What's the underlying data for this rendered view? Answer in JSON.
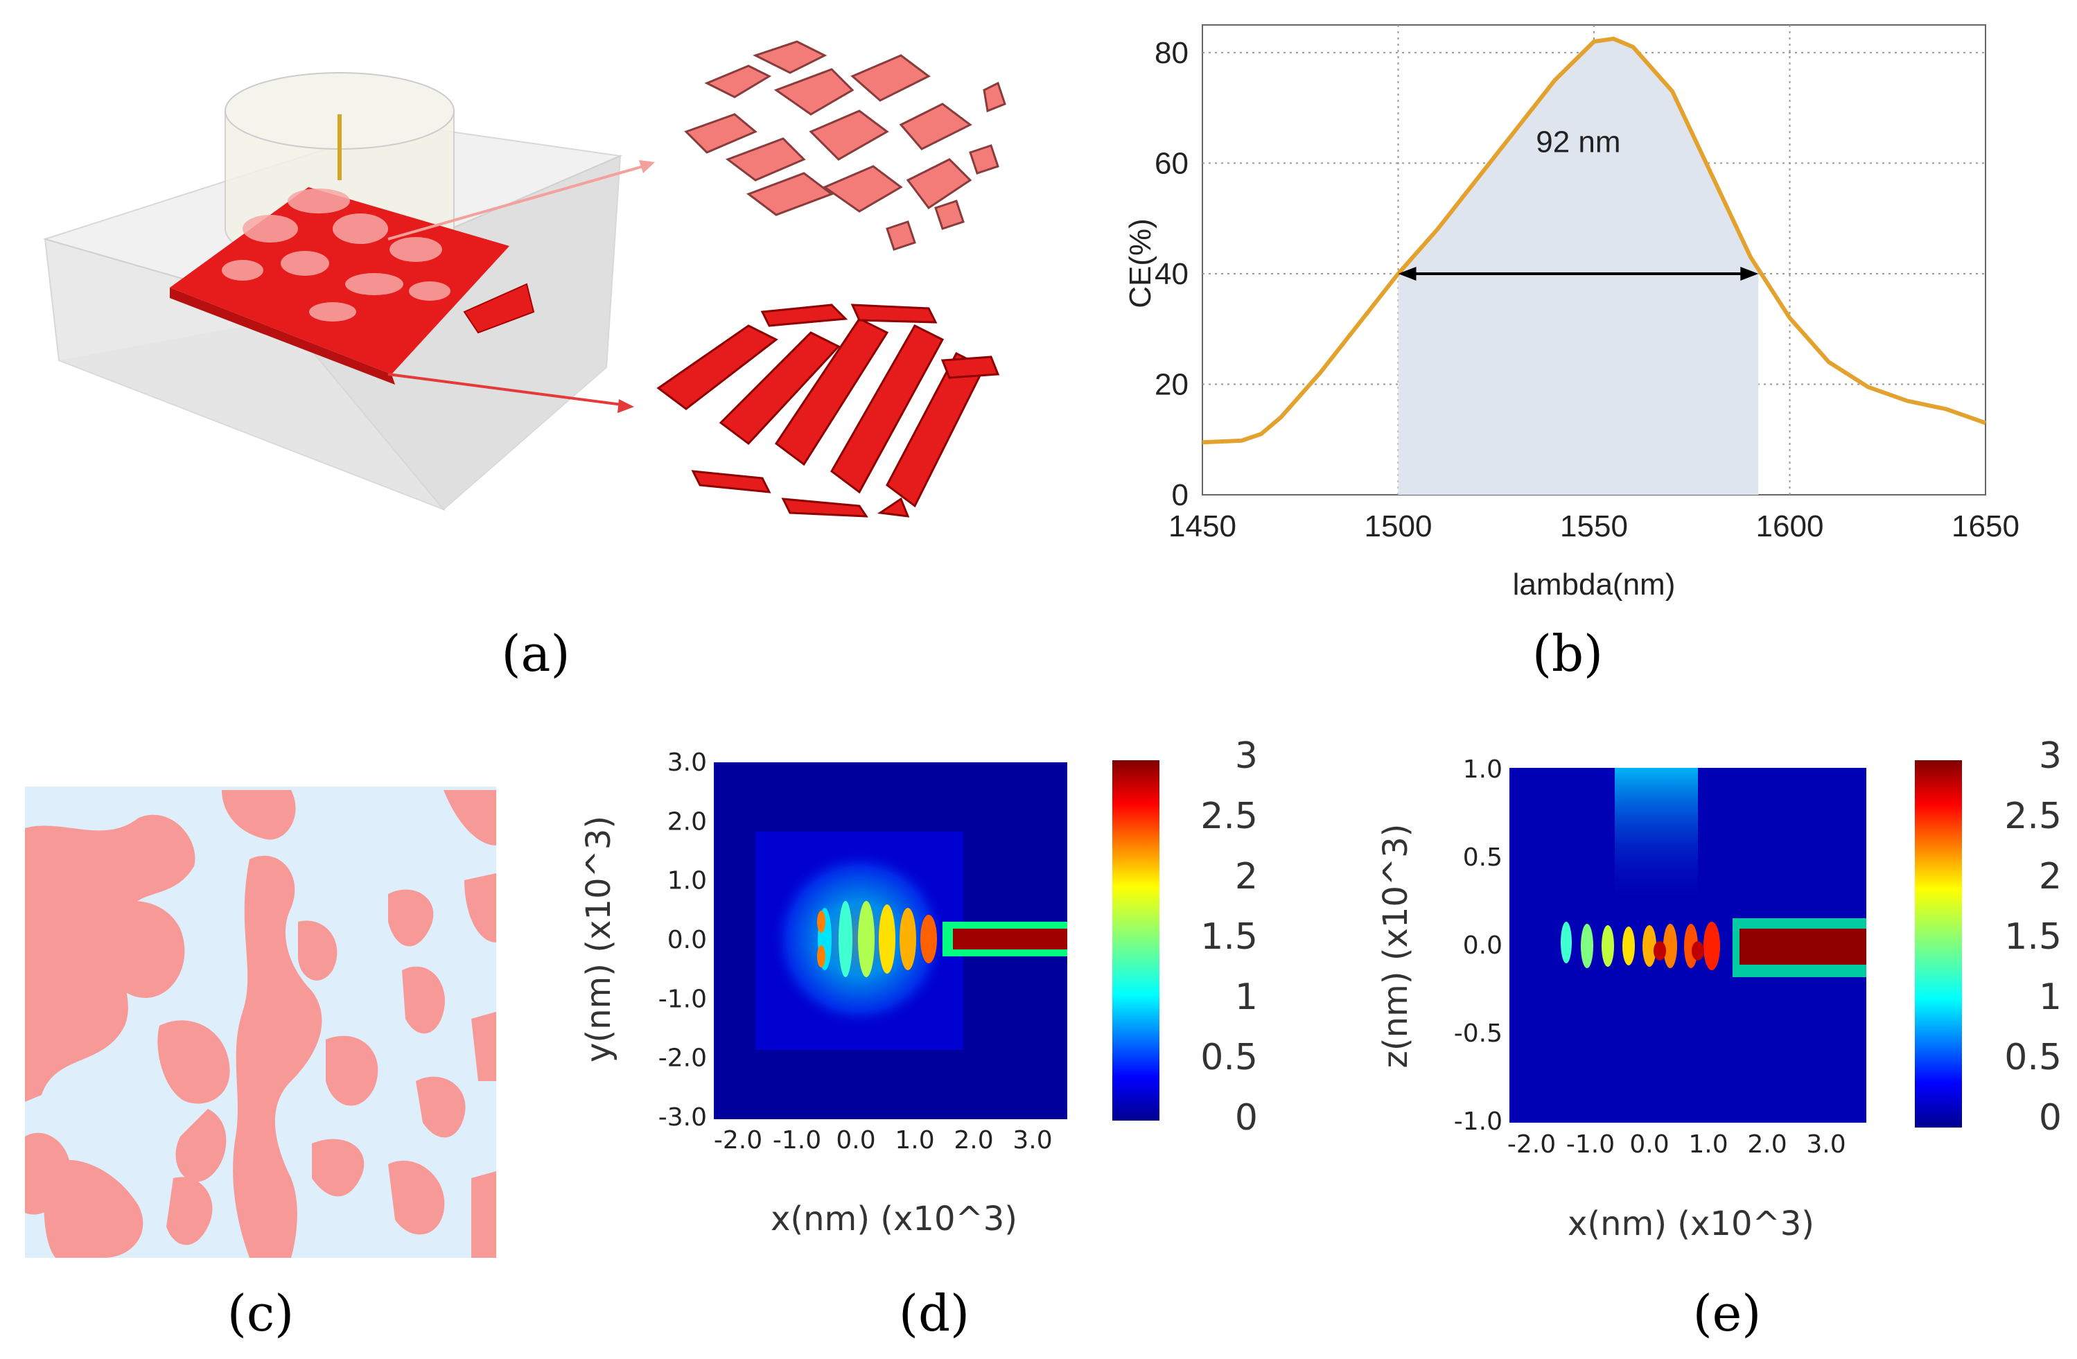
{
  "captions": {
    "a": "(a)",
    "b": "(b)",
    "c": "(c)",
    "d": "(d)",
    "e": "(e)"
  },
  "colors": {
    "curve": "#e3a12e",
    "band": "#dfe5ef",
    "pattern_pink": "#f79a97",
    "pattern_bg": "#deeefb",
    "device_red": "#e61c1c"
  },
  "chart_data": [
    {
      "id": "b",
      "type": "line",
      "xlabel": "lambda(nm)",
      "ylabel": "CE(%)",
      "xlim": [
        1450,
        1650
      ],
      "ylim": [
        0,
        85
      ],
      "xticks": [
        1450,
        1500,
        1550,
        1600,
        1650
      ],
      "yticks": [
        0,
        20,
        40,
        60,
        80
      ],
      "grid": true,
      "series": [
        {
          "name": "CE",
          "x": [
            1450,
            1460,
            1465,
            1470,
            1480,
            1490,
            1500,
            1510,
            1520,
            1530,
            1540,
            1550,
            1555,
            1560,
            1570,
            1580,
            1590,
            1600,
            1610,
            1620,
            1630,
            1640,
            1650
          ],
          "y": [
            9.5,
            9.8,
            11,
            14,
            22,
            31,
            40,
            48,
            57,
            66,
            75,
            82,
            82.5,
            81,
            73,
            58,
            43,
            32,
            24,
            19.5,
            17,
            15.5,
            13
          ]
        }
      ],
      "shaded_band": {
        "x0": 1500,
        "x1": 1592
      },
      "annotation": {
        "text": "92 nm",
        "x0": 1500,
        "x1": 1592,
        "y": 40
      }
    },
    {
      "id": "d",
      "type": "heatmap",
      "xlabel": "x(nm) (x10^3)",
      "ylabel": "y(nm) (x10^3)",
      "xticks": [
        "-2.0",
        "-1.0",
        "0.0",
        "1.0",
        "2.0",
        "3.0"
      ],
      "yticks": [
        "3.0",
        "2.0",
        "1.0",
        "0.0",
        "-1.0",
        "-2.0",
        "-3.0"
      ],
      "colorbar": {
        "ticks": [
          "3",
          "2.5",
          "2",
          "1.5",
          "1",
          "0.5",
          "0"
        ],
        "range": [
          0,
          3
        ]
      }
    },
    {
      "id": "e",
      "type": "heatmap",
      "xlabel": "x(nm) (x10^3)",
      "ylabel": "z(nm) (x10^3)",
      "xticks": [
        "-2.0",
        "-1.0",
        "0.0",
        "1.0",
        "2.0",
        "3.0"
      ],
      "yticks": [
        "1.0",
        "0.5",
        "0.0",
        "-0.5",
        "-1.0"
      ],
      "colorbar": {
        "ticks": [
          "3",
          "2.5",
          "2",
          "1.5",
          "1",
          "0.5",
          "0"
        ],
        "range": [
          0,
          3
        ]
      }
    }
  ]
}
